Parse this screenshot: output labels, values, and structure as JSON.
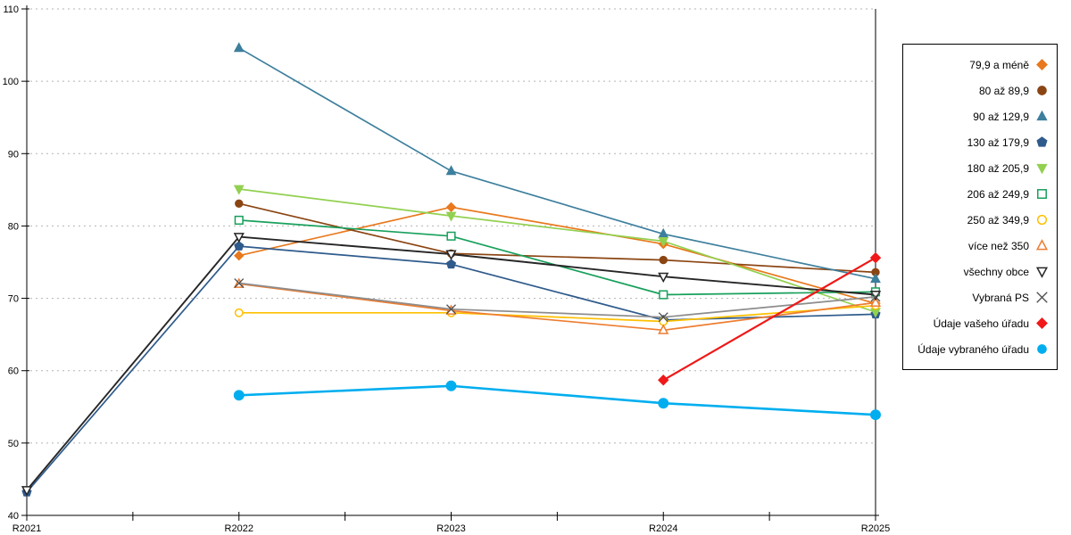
{
  "chart_data": {
    "type": "line",
    "x_categories": [
      "R2021",
      "R2022",
      "R2023",
      "R2024",
      "R2025"
    ],
    "y_ticks": [
      40,
      50,
      60,
      70,
      80,
      90,
      100,
      110
    ],
    "ylim": [
      40,
      110
    ],
    "grid": "horizontal-dashed",
    "legend_position": "right",
    "series": [
      {
        "name": "79,9 a méně",
        "color": "#E8791D",
        "marker": "diamond",
        "fill": "filled",
        "width": 1.7,
        "msize": 1.0,
        "values": [
          null,
          75.9,
          82.6,
          77.5,
          69.3
        ]
      },
      {
        "name": "80 až 89,9",
        "color": "#8B4513",
        "marker": "circle",
        "fill": "filled",
        "width": 1.7,
        "msize": 1.0,
        "values": [
          null,
          83.1,
          76.2,
          75.3,
          73.6
        ]
      },
      {
        "name": "90 až 129,9",
        "color": "#3D7F9D",
        "marker": "triangle-up",
        "fill": "filled",
        "width": 1.7,
        "msize": 1.1,
        "values": [
          null,
          104.6,
          87.6,
          78.9,
          72.7
        ]
      },
      {
        "name": "130 až 179,9",
        "color": "#2F5B8C",
        "marker": "pentagon",
        "fill": "filled",
        "width": 1.7,
        "msize": 1.05,
        "values": [
          43.2,
          77.2,
          74.7,
          67.0,
          67.8
        ]
      },
      {
        "name": "180 až 205,9",
        "color": "#92D050",
        "marker": "triangle-down",
        "fill": "filled",
        "width": 1.7,
        "msize": 1.1,
        "values": [
          null,
          85.1,
          81.4,
          77.9,
          68.1
        ]
      },
      {
        "name": "206 až 249,9",
        "color": "#18A05C",
        "marker": "square",
        "fill": "open",
        "width": 1.7,
        "msize": 1.05,
        "values": [
          null,
          80.8,
          78.6,
          70.5,
          70.9
        ]
      },
      {
        "name": "250 až 349,9",
        "color": "#FFC000",
        "marker": "circle",
        "fill": "open",
        "width": 1.7,
        "msize": 1.0,
        "values": [
          null,
          68.0,
          68.0,
          66.8,
          69.0
        ]
      },
      {
        "name": "více než 350",
        "color": "#ED7D31",
        "marker": "triangle-up",
        "fill": "open",
        "width": 1.7,
        "msize": 1.05,
        "values": [
          null,
          72.0,
          68.3,
          65.6,
          69.4
        ]
      },
      {
        "name": "všechny obce",
        "color": "#262626",
        "marker": "triangle-down",
        "fill": "open",
        "width": 1.9,
        "msize": 1.05,
        "values": [
          43.5,
          78.5,
          76.1,
          73.0,
          70.5
        ]
      },
      {
        "name": "Vybraná PS",
        "color": "#8C8C8C",
        "marker": "x",
        "fill": "open",
        "width": 1.7,
        "msize": 1.0,
        "marker_color": "#4D4D4D",
        "values": [
          null,
          72.1,
          68.5,
          67.4,
          70.2
        ]
      },
      {
        "name": "Údaje vašeho úřadu",
        "color": "#F01818",
        "marker": "diamond",
        "fill": "filled",
        "width": 2.2,
        "msize": 1.1,
        "values": [
          null,
          null,
          null,
          58.7,
          75.6
        ]
      },
      {
        "name": "Údaje vybraného úřadu",
        "color": "#00AEEF",
        "marker": "circle",
        "fill": "filled",
        "width": 2.6,
        "msize": 1.3,
        "values": [
          null,
          56.6,
          57.9,
          55.5,
          53.9
        ]
      }
    ]
  },
  "colors": {
    "axis": "#000000",
    "gridline": "#B3B3B3",
    "background": "#FFFFFF"
  }
}
